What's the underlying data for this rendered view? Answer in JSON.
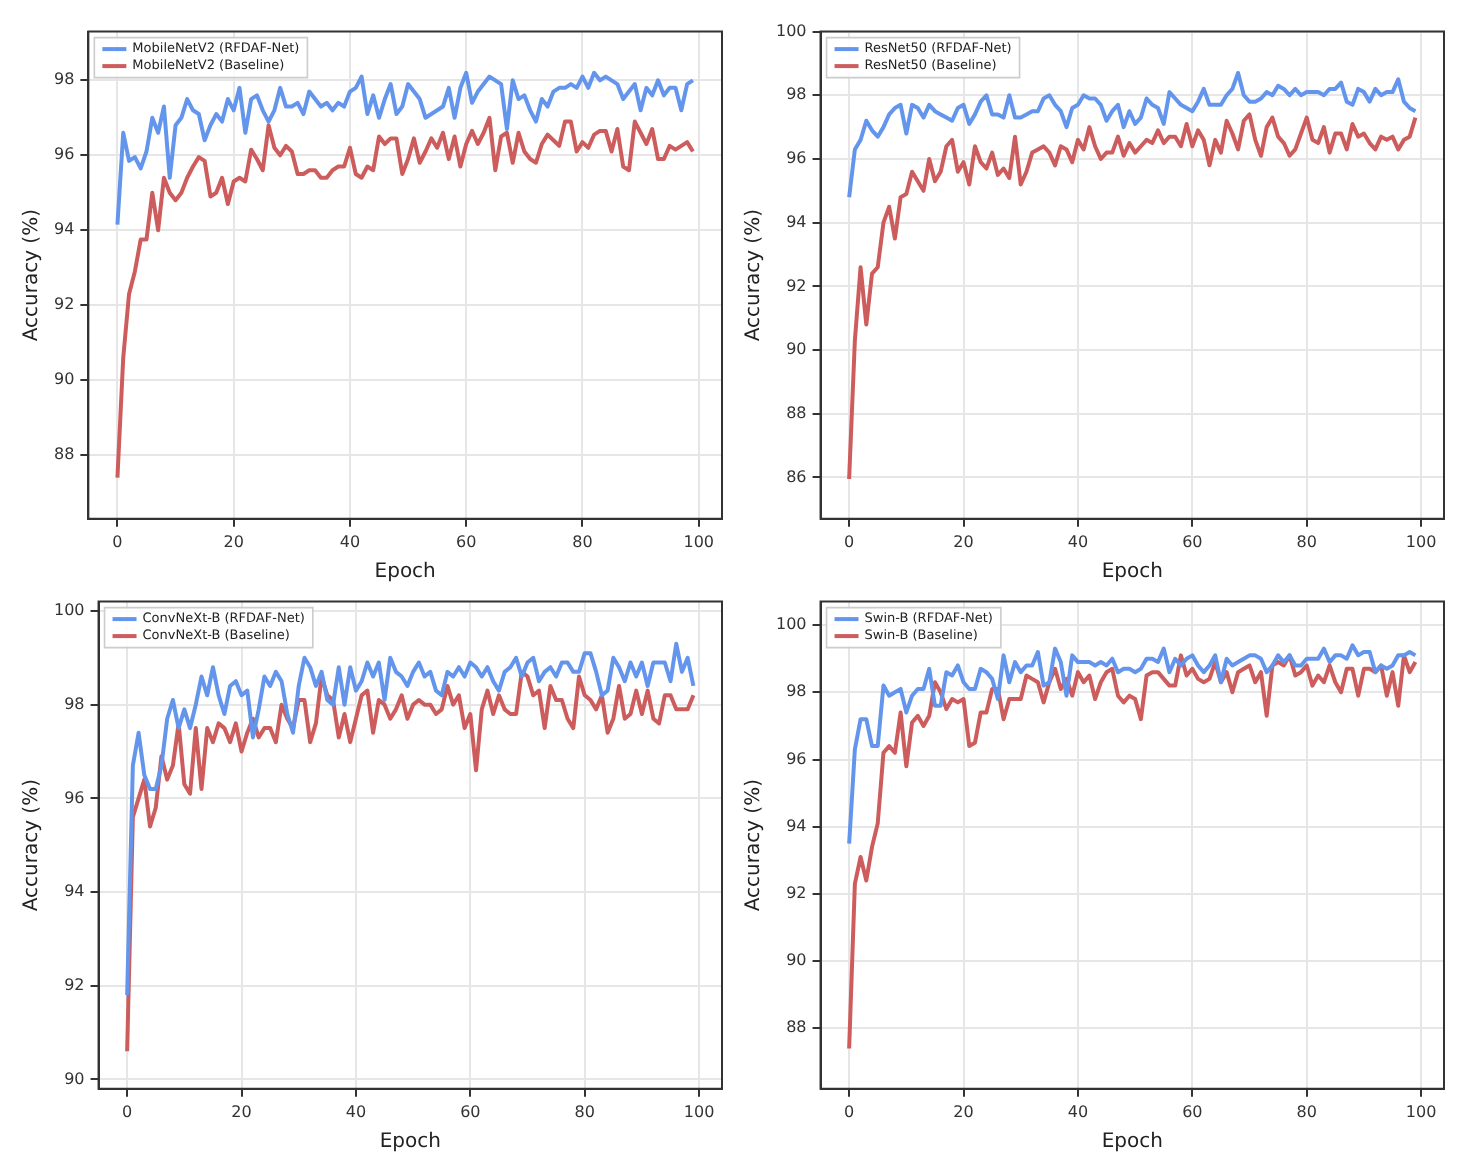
{
  "chart_data": [
    {
      "type": "line",
      "xlabel": "Epoch",
      "ylabel": "Accuracy (%)",
      "legend": "top left",
      "grid": true,
      "xlim": [
        -5,
        104
      ],
      "xticks": [
        0,
        20,
        40,
        60,
        80,
        100
      ],
      "ylim": [
        86.3,
        99.3
      ],
      "yticks": [
        88,
        90,
        92,
        94,
        96,
        98
      ],
      "x": [
        0,
        1,
        2,
        3,
        4,
        5,
        6,
        7,
        8,
        9,
        10,
        11,
        12,
        13,
        14,
        15,
        16,
        17,
        18,
        19,
        20,
        21,
        22,
        23,
        24,
        25,
        26,
        27,
        28,
        29,
        30,
        31,
        32,
        33,
        34,
        35,
        36,
        37,
        38,
        39,
        40,
        41,
        42,
        43,
        44,
        45,
        46,
        47,
        48,
        49,
        50,
        51,
        52,
        53,
        54,
        55,
        56,
        57,
        58,
        59,
        60,
        61,
        62,
        63,
        64,
        65,
        66,
        67,
        68,
        69,
        70,
        71,
        72,
        73,
        74,
        75,
        76,
        77,
        78,
        79,
        80,
        81,
        82,
        83,
        84,
        85,
        86,
        87,
        88,
        89,
        90,
        91,
        92,
        93,
        94,
        95,
        96,
        97,
        98,
        99
      ],
      "series": [
        {
          "name": "MobileNetV2 (RFDAF-Net)",
          "color": "#6495ed",
          "values": [
            94.15,
            96.6,
            95.85,
            95.95,
            95.65,
            96.1,
            97.0,
            96.6,
            97.3,
            95.4,
            96.8,
            97.0,
            97.5,
            97.2,
            97.1,
            96.4,
            96.8,
            97.1,
            96.9,
            97.5,
            97.2,
            97.8,
            96.6,
            97.5,
            97.6,
            97.2,
            96.9,
            97.2,
            97.8,
            97.3,
            97.3,
            97.4,
            97.1,
            97.7,
            97.5,
            97.3,
            97.4,
            97.2,
            97.4,
            97.3,
            97.7,
            97.8,
            98.1,
            97.1,
            97.6,
            97.0,
            97.5,
            97.9,
            97.1,
            97.3,
            97.9,
            97.7,
            97.5,
            97.0,
            97.1,
            97.2,
            97.3,
            97.8,
            97.0,
            97.8,
            98.2,
            97.4,
            97.7,
            97.9,
            98.1,
            98.0,
            97.9,
            96.7,
            98.0,
            97.5,
            97.6,
            97.2,
            96.9,
            97.5,
            97.3,
            97.7,
            97.8,
            97.8,
            97.9,
            97.8,
            98.1,
            97.8,
            98.2,
            98.0,
            98.1,
            98.0,
            97.9,
            97.5,
            97.7,
            97.9,
            97.2,
            97.8,
            97.6,
            98.0,
            97.6,
            97.8,
            97.8,
            97.2,
            97.9,
            98.0
          ]
        },
        {
          "name": "MobileNetV2 (Baseline)",
          "color": "#cd5c5c",
          "values": [
            87.4,
            90.6,
            92.3,
            92.9,
            93.75,
            93.75,
            95.0,
            94.0,
            95.4,
            95.0,
            94.8,
            95.0,
            95.4,
            95.7,
            95.95,
            95.85,
            94.9,
            95.0,
            95.4,
            94.7,
            95.3,
            95.4,
            95.3,
            96.15,
            95.9,
            95.6,
            96.8,
            96.2,
            96.0,
            96.25,
            96.1,
            95.5,
            95.5,
            95.6,
            95.6,
            95.4,
            95.4,
            95.6,
            95.7,
            95.7,
            96.2,
            95.5,
            95.4,
            95.7,
            95.6,
            96.5,
            96.3,
            96.45,
            96.45,
            95.5,
            95.9,
            96.45,
            95.8,
            96.1,
            96.45,
            96.2,
            96.6,
            95.9,
            96.5,
            95.7,
            96.3,
            96.65,
            96.3,
            96.6,
            97.0,
            95.6,
            96.5,
            96.6,
            95.8,
            96.6,
            96.1,
            95.9,
            95.8,
            96.3,
            96.55,
            96.4,
            96.25,
            96.9,
            96.9,
            96.1,
            96.35,
            96.2,
            96.55,
            96.65,
            96.65,
            96.1,
            96.7,
            95.7,
            95.6,
            96.9,
            96.6,
            96.3,
            96.7,
            95.9,
            95.9,
            96.25,
            96.15,
            96.25,
            96.35,
            96.1
          ]
        }
      ]
    },
    {
      "type": "line",
      "xlabel": "Epoch",
      "ylabel": "Accuracy (%)",
      "legend": "top left",
      "grid": true,
      "xlim": [
        -5,
        104
      ],
      "xticks": [
        0,
        20,
        40,
        60,
        80,
        100
      ],
      "ylim": [
        84.7,
        100
      ],
      "yticks": [
        86,
        88,
        90,
        92,
        94,
        96,
        98,
        100
      ],
      "x": [
        0,
        1,
        2,
        3,
        4,
        5,
        6,
        7,
        8,
        9,
        10,
        11,
        12,
        13,
        14,
        15,
        16,
        17,
        18,
        19,
        20,
        21,
        22,
        23,
        24,
        25,
        26,
        27,
        28,
        29,
        30,
        31,
        32,
        33,
        34,
        35,
        36,
        37,
        38,
        39,
        40,
        41,
        42,
        43,
        44,
        45,
        46,
        47,
        48,
        49,
        50,
        51,
        52,
        53,
        54,
        55,
        56,
        57,
        58,
        59,
        60,
        61,
        62,
        63,
        64,
        65,
        66,
        67,
        68,
        69,
        70,
        71,
        72,
        73,
        74,
        75,
        76,
        77,
        78,
        79,
        80,
        81,
        82,
        83,
        84,
        85,
        86,
        87,
        88,
        89,
        90,
        91,
        92,
        93,
        94,
        95,
        96,
        97,
        98,
        99
      ],
      "series": [
        {
          "name": "ResNet50 (RFDAF-Net)",
          "color": "#6495ed",
          "values": [
            94.8,
            96.3,
            96.6,
            97.2,
            96.9,
            96.7,
            97.0,
            97.4,
            97.6,
            97.7,
            96.8,
            97.7,
            97.6,
            97.3,
            97.7,
            97.5,
            97.4,
            97.3,
            97.2,
            97.6,
            97.7,
            97.1,
            97.4,
            97.8,
            98.0,
            97.4,
            97.4,
            97.3,
            98.0,
            97.3,
            97.3,
            97.4,
            97.5,
            97.5,
            97.9,
            98.0,
            97.7,
            97.5,
            97.0,
            97.6,
            97.7,
            98.0,
            97.9,
            97.9,
            97.7,
            97.2,
            97.5,
            97.7,
            97.0,
            97.5,
            97.1,
            97.3,
            97.9,
            97.7,
            97.6,
            97.1,
            98.1,
            97.9,
            97.7,
            97.6,
            97.5,
            97.8,
            98.2,
            97.7,
            97.7,
            97.7,
            98.0,
            98.2,
            98.7,
            98.0,
            97.8,
            97.8,
            97.9,
            98.1,
            98.0,
            98.3,
            98.2,
            98.0,
            98.2,
            98.0,
            98.1,
            98.1,
            98.1,
            98.0,
            98.2,
            98.2,
            98.4,
            97.8,
            97.7,
            98.2,
            98.1,
            97.8,
            98.2,
            98.0,
            98.1,
            98.1,
            98.5,
            97.8,
            97.6,
            97.5
          ]
        },
        {
          "name": "ResNet50 (Baseline)",
          "color": "#cd5c5c",
          "values": [
            85.95,
            90.3,
            92.6,
            90.8,
            92.4,
            92.6,
            94.0,
            94.5,
            93.5,
            94.8,
            94.9,
            95.6,
            95.3,
            95.0,
            96.0,
            95.3,
            95.6,
            96.4,
            96.6,
            95.6,
            95.9,
            95.2,
            96.4,
            95.9,
            95.7,
            96.2,
            95.5,
            95.7,
            95.4,
            96.7,
            95.2,
            95.6,
            96.2,
            96.3,
            96.4,
            96.2,
            95.8,
            96.4,
            96.3,
            95.9,
            96.6,
            96.3,
            97.0,
            96.4,
            96.0,
            96.2,
            96.2,
            96.7,
            96.1,
            96.5,
            96.2,
            96.4,
            96.6,
            96.5,
            96.9,
            96.5,
            96.7,
            96.7,
            96.4,
            97.1,
            96.4,
            96.9,
            96.6,
            95.8,
            96.6,
            96.2,
            97.2,
            96.8,
            96.3,
            97.2,
            97.4,
            96.6,
            96.1,
            97.0,
            97.3,
            96.7,
            96.5,
            96.1,
            96.3,
            96.8,
            97.3,
            96.6,
            96.5,
            97.0,
            96.2,
            96.8,
            96.8,
            96.3,
            97.1,
            96.7,
            96.8,
            96.5,
            96.3,
            96.7,
            96.6,
            96.7,
            96.3,
            96.6,
            96.7,
            97.3
          ]
        }
      ]
    },
    {
      "type": "line",
      "xlabel": "Epoch",
      "ylabel": "Accuracy (%)",
      "legend": "top left",
      "grid": true,
      "xlim": [
        -5,
        104
      ],
      "xticks": [
        0,
        20,
        40,
        60,
        80,
        100
      ],
      "ylim": [
        89.8,
        100.2
      ],
      "yticks": [
        90,
        92,
        94,
        96,
        98,
        100
      ],
      "x": [
        0,
        1,
        2,
        3,
        4,
        5,
        6,
        7,
        8,
        9,
        10,
        11,
        12,
        13,
        14,
        15,
        16,
        17,
        18,
        19,
        20,
        21,
        22,
        23,
        24,
        25,
        26,
        27,
        28,
        29,
        30,
        31,
        32,
        33,
        34,
        35,
        36,
        37,
        38,
        39,
        40,
        41,
        42,
        43,
        44,
        45,
        46,
        47,
        48,
        49,
        50,
        51,
        52,
        53,
        54,
        55,
        56,
        57,
        58,
        59,
        60,
        61,
        62,
        63,
        64,
        65,
        66,
        67,
        68,
        69,
        70,
        71,
        72,
        73,
        74,
        75,
        76,
        77,
        78,
        79,
        80,
        81,
        82,
        83,
        84,
        85,
        86,
        87,
        88,
        89,
        90,
        91,
        92,
        93,
        94,
        95,
        96,
        97,
        98,
        99
      ],
      "series": [
        {
          "name": "ConvNeXt-B (RFDAF-Net)",
          "color": "#6495ed",
          "values": [
            91.8,
            96.7,
            97.4,
            96.5,
            96.2,
            96.2,
            96.7,
            97.7,
            98.1,
            97.5,
            97.9,
            97.5,
            98.0,
            98.6,
            98.2,
            98.8,
            98.2,
            97.8,
            98.4,
            98.5,
            98.2,
            98.3,
            97.3,
            97.9,
            98.6,
            98.4,
            98.7,
            98.5,
            97.8,
            97.4,
            98.4,
            99.0,
            98.8,
            98.4,
            98.7,
            98.1,
            98.0,
            98.8,
            98.0,
            98.8,
            98.3,
            98.5,
            98.9,
            98.6,
            98.9,
            98.1,
            99.0,
            98.7,
            98.6,
            98.4,
            98.7,
            98.9,
            98.6,
            98.7,
            98.3,
            98.2,
            98.7,
            98.6,
            98.8,
            98.6,
            98.9,
            98.8,
            98.6,
            98.8,
            98.5,
            98.3,
            98.7,
            98.8,
            99.0,
            98.6,
            98.9,
            99.0,
            98.5,
            98.7,
            98.8,
            98.6,
            98.9,
            98.9,
            98.7,
            98.7,
            99.1,
            99.1,
            98.7,
            98.2,
            98.3,
            99.0,
            98.8,
            98.5,
            98.9,
            98.6,
            98.9,
            98.4,
            98.9,
            98.9,
            98.9,
            98.5,
            99.3,
            98.7,
            99.0,
            98.4
          ]
        },
        {
          "name": "ConvNeXt-B (Baseline)",
          "color": "#cd5c5c",
          "values": [
            90.6,
            95.6,
            96.0,
            96.4,
            95.4,
            95.8,
            96.9,
            96.4,
            96.7,
            97.6,
            96.3,
            96.1,
            97.5,
            96.2,
            97.5,
            97.2,
            97.6,
            97.5,
            97.2,
            97.6,
            97.0,
            97.4,
            97.7,
            97.3,
            97.5,
            97.5,
            97.2,
            98.0,
            97.7,
            97.5,
            98.1,
            98.1,
            97.2,
            97.6,
            98.6,
            98.2,
            98.1,
            97.3,
            97.8,
            97.2,
            97.7,
            98.2,
            98.3,
            97.4,
            98.1,
            98.0,
            97.7,
            97.9,
            98.2,
            97.7,
            98.0,
            98.1,
            98.0,
            98.0,
            97.8,
            97.9,
            98.4,
            98.0,
            98.2,
            97.5,
            97.8,
            96.6,
            97.9,
            98.3,
            97.8,
            98.2,
            97.9,
            97.8,
            97.8,
            98.7,
            98.6,
            98.2,
            98.3,
            97.5,
            98.4,
            98.1,
            98.1,
            97.7,
            97.5,
            98.6,
            98.2,
            98.1,
            97.9,
            98.2,
            97.4,
            97.7,
            98.4,
            97.7,
            97.8,
            98.3,
            97.8,
            98.3,
            97.7,
            97.6,
            98.2,
            98.2,
            97.9,
            97.9,
            97.9,
            98.2
          ]
        }
      ]
    },
    {
      "type": "line",
      "xlabel": "Epoch",
      "ylabel": "Accuracy (%)",
      "legend": "top left",
      "grid": true,
      "xlim": [
        -5,
        104
      ],
      "xticks": [
        0,
        20,
        40,
        60,
        80,
        100
      ],
      "ylim": [
        86.2,
        100.7
      ],
      "yticks": [
        88,
        90,
        92,
        94,
        96,
        98,
        100
      ],
      "x": [
        0,
        1,
        2,
        3,
        4,
        5,
        6,
        7,
        8,
        9,
        10,
        11,
        12,
        13,
        14,
        15,
        16,
        17,
        18,
        19,
        20,
        21,
        22,
        23,
        24,
        25,
        26,
        27,
        28,
        29,
        30,
        31,
        32,
        33,
        34,
        35,
        36,
        37,
        38,
        39,
        40,
        41,
        42,
        43,
        44,
        45,
        46,
        47,
        48,
        49,
        50,
        51,
        52,
        53,
        54,
        55,
        56,
        57,
        58,
        59,
        60,
        61,
        62,
        63,
        64,
        65,
        66,
        67,
        68,
        69,
        70,
        71,
        72,
        73,
        74,
        75,
        76,
        77,
        78,
        79,
        80,
        81,
        82,
        83,
        84,
        85,
        86,
        87,
        88,
        89,
        90,
        91,
        92,
        93,
        94,
        95,
        96,
        97,
        98,
        99
      ],
      "series": [
        {
          "name": "Swin-B (RFDAF-Net)",
          "color": "#6495ed",
          "values": [
            93.5,
            96.3,
            97.2,
            97.2,
            96.4,
            96.4,
            98.2,
            97.9,
            98.0,
            98.1,
            97.4,
            97.9,
            98.1,
            98.1,
            98.7,
            97.6,
            97.6,
            98.6,
            98.5,
            98.8,
            98.3,
            98.1,
            98.1,
            98.7,
            98.6,
            98.4,
            97.8,
            99.1,
            98.3,
            98.9,
            98.6,
            98.8,
            98.8,
            99.2,
            98.2,
            98.3,
            99.3,
            98.9,
            97.9,
            99.1,
            98.9,
            98.9,
            98.9,
            98.8,
            98.9,
            98.8,
            99.0,
            98.6,
            98.7,
            98.7,
            98.6,
            98.7,
            99.0,
            99.0,
            98.9,
            99.3,
            98.6,
            99.0,
            98.8,
            99.0,
            99.1,
            98.8,
            98.6,
            98.8,
            99.1,
            98.3,
            99.0,
            98.8,
            98.9,
            99.0,
            99.1,
            99.1,
            99.0,
            98.6,
            98.8,
            99.1,
            98.9,
            99.1,
            98.8,
            98.8,
            99.0,
            99.0,
            99.0,
            99.3,
            98.9,
            99.1,
            99.1,
            99.0,
            99.4,
            99.1,
            99.2,
            99.2,
            98.6,
            98.8,
            98.7,
            98.8,
            99.1,
            99.1,
            99.2,
            99.1
          ]
        },
        {
          "name": "Swin-B (Baseline)",
          "color": "#cd5c5c",
          "values": [
            87.4,
            92.3,
            93.1,
            92.4,
            93.4,
            94.1,
            96.2,
            96.4,
            96.2,
            97.4,
            95.8,
            97.1,
            97.3,
            97.0,
            97.3,
            98.3,
            98.0,
            97.5,
            97.8,
            97.7,
            97.8,
            96.4,
            96.5,
            97.4,
            97.4,
            98.1,
            98.1,
            97.2,
            97.8,
            97.8,
            97.8,
            98.5,
            98.4,
            98.3,
            97.7,
            98.3,
            98.7,
            98.1,
            98.4,
            97.9,
            98.6,
            98.3,
            98.5,
            97.8,
            98.3,
            98.6,
            98.7,
            97.9,
            97.7,
            97.9,
            97.8,
            97.2,
            98.5,
            98.6,
            98.6,
            98.4,
            98.2,
            98.2,
            99.1,
            98.5,
            98.7,
            98.4,
            98.3,
            98.4,
            98.9,
            98.3,
            98.6,
            98.0,
            98.6,
            98.7,
            98.8,
            98.3,
            98.6,
            97.3,
            98.8,
            98.9,
            98.8,
            99.1,
            98.5,
            98.6,
            98.8,
            98.2,
            98.5,
            98.3,
            98.8,
            98.3,
            98.0,
            98.7,
            98.7,
            97.9,
            98.7,
            98.7,
            98.6,
            98.8,
            97.9,
            98.6,
            97.6,
            99.1,
            98.6,
            98.9
          ]
        }
      ]
    }
  ]
}
